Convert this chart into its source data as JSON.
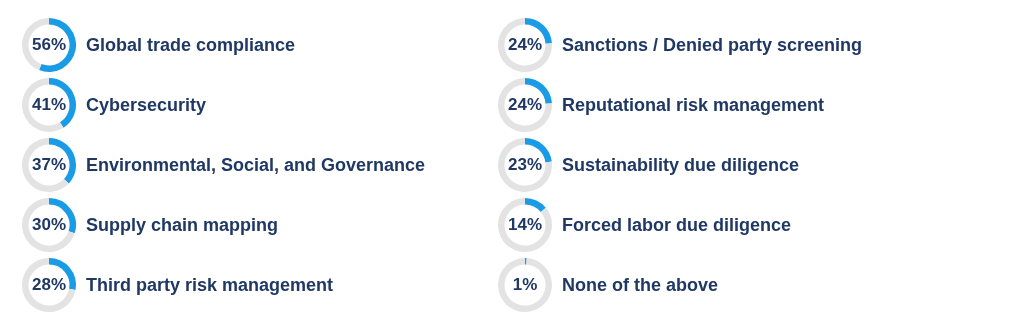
{
  "chart_data": [
    {
      "type": "donut",
      "title": "Global trade compliance",
      "categories": [
        null,
        null
      ],
      "values": [
        56,
        44
      ],
      "colors": [
        "#1a9be6",
        "#e3e3e3"
      ],
      "value_labels": [
        "56%",
        null
      ]
    },
    {
      "type": "donut",
      "title": "Cybersecurity",
      "categories": [
        null,
        null
      ],
      "values": [
        41,
        59
      ],
      "colors": [
        "#1a9be6",
        "#e3e3e3"
      ],
      "value_labels": [
        "41%",
        null
      ]
    },
    {
      "type": "donut",
      "title": "Environmental, Social, and Governance",
      "categories": [
        null,
        null
      ],
      "values": [
        37,
        63
      ],
      "colors": [
        "#1a9be6",
        "#e3e3e3"
      ],
      "value_labels": [
        "37%",
        null
      ]
    },
    {
      "type": "donut",
      "title": "Supply chain mapping",
      "categories": [
        null,
        null
      ],
      "values": [
        30,
        70
      ],
      "colors": [
        "#1a9be6",
        "#e3e3e3"
      ],
      "value_labels": [
        "30%",
        null
      ]
    },
    {
      "type": "donut",
      "title": "Third party risk management",
      "categories": [
        null,
        null
      ],
      "values": [
        28,
        72
      ],
      "colors": [
        "#1a9be6",
        "#e3e3e3"
      ],
      "value_labels": [
        "28%",
        null
      ]
    },
    {
      "type": "donut",
      "title": "Sanctions / Denied party screening",
      "categories": [
        null,
        null
      ],
      "values": [
        24,
        76
      ],
      "colors": [
        "#1a9be6",
        "#e3e3e3"
      ],
      "value_labels": [
        "24%",
        null
      ]
    },
    {
      "type": "donut",
      "title": "Reputational risk management",
      "categories": [
        null,
        null
      ],
      "values": [
        24,
        76
      ],
      "colors": [
        "#1a9be6",
        "#e3e3e3"
      ],
      "value_labels": [
        "24%",
        null
      ]
    },
    {
      "type": "donut",
      "title": "Sustainability due diligence",
      "categories": [
        null,
        null
      ],
      "values": [
        23,
        77
      ],
      "colors": [
        "#1a9be6",
        "#e3e3e3"
      ],
      "value_labels": [
        "23%",
        null
      ]
    },
    {
      "type": "donut",
      "title": "Forced labor due diligence",
      "categories": [
        null,
        null
      ],
      "values": [
        14,
        86
      ],
      "colors": [
        "#1a9be6",
        "#e3e3e3"
      ],
      "value_labels": [
        "14%",
        null
      ]
    },
    {
      "type": "donut",
      "title": "None of the above",
      "categories": [
        null,
        null
      ],
      "values": [
        1,
        99
      ],
      "colors": [
        "#1a9be6",
        "#e3e3e3"
      ],
      "value_labels": [
        "1%",
        null
      ]
    }
  ]
}
